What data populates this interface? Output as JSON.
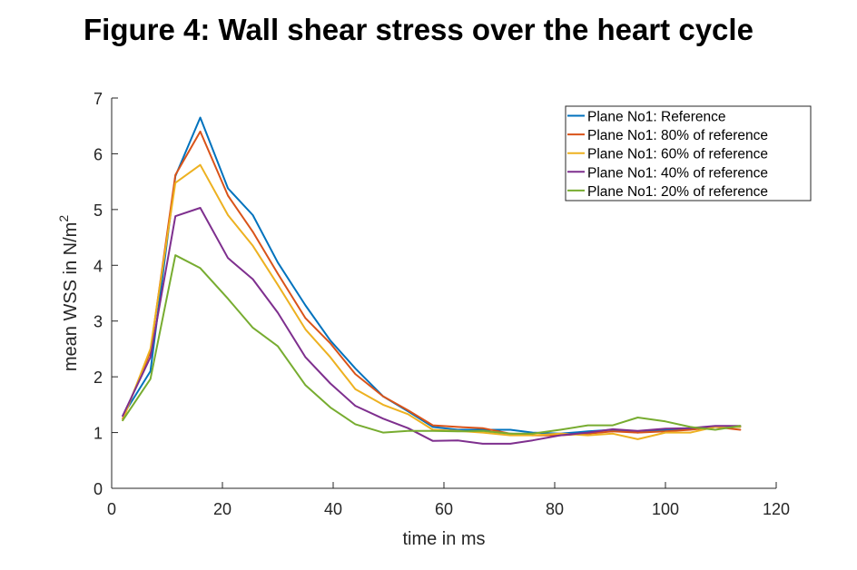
{
  "title": "Figure 4: Wall shear stress over the heart cycle",
  "chart_data": {
    "type": "line",
    "title": "Figure 4: Wall shear stress over the heart cycle",
    "xlabel": "time in ms",
    "ylabel": "mean WSS in N/m",
    "ylabel_superscript": "2",
    "xlim": [
      0,
      120
    ],
    "ylim": [
      0,
      7
    ],
    "xticks": [
      0,
      20,
      40,
      60,
      80,
      100,
      120
    ],
    "yticks": [
      0,
      1,
      2,
      3,
      4,
      5,
      6,
      7
    ],
    "grid": false,
    "legend_position": "top-right",
    "x": [
      2,
      7,
      11.5,
      16,
      21,
      25.5,
      30,
      35,
      39.5,
      44,
      49,
      53.5,
      58,
      62.5,
      67,
      72,
      76,
      81,
      86,
      90.5,
      95,
      100,
      104.5,
      109,
      113.5
    ],
    "series": [
      {
        "name": "Plane No1: Reference",
        "color": "#0072BD",
        "values": [
          1.3,
          2.1,
          5.6,
          6.65,
          5.38,
          4.9,
          4.05,
          3.28,
          2.65,
          2.15,
          1.65,
          1.38,
          1.1,
          1.05,
          1.05,
          1.05,
          1.0,
          0.98,
          1.02,
          1.05,
          1.0,
          1.05,
          1.07,
          1.1,
          1.1
        ]
      },
      {
        "name": "Plane No1: 80% of reference",
        "color": "#D95319",
        "values": [
          1.25,
          2.45,
          5.62,
          6.4,
          5.25,
          4.6,
          3.85,
          3.05,
          2.6,
          2.05,
          1.65,
          1.4,
          1.13,
          1.1,
          1.08,
          0.98,
          0.95,
          0.95,
          0.98,
          1.02,
          1.0,
          1.02,
          1.05,
          1.1,
          1.05
        ]
      },
      {
        "name": "Plane No1: 60% of reference",
        "color": "#EDB120",
        "values": [
          1.22,
          2.5,
          5.48,
          5.8,
          4.9,
          4.35,
          3.65,
          2.85,
          2.35,
          1.78,
          1.5,
          1.33,
          1.05,
          1.03,
          1.0,
          0.95,
          0.95,
          0.98,
          0.95,
          0.98,
          0.88,
          1.0,
          1.0,
          1.1,
          1.1
        ]
      },
      {
        "name": "Plane No1: 40% of reference",
        "color": "#7E2F8E",
        "values": [
          1.3,
          2.35,
          4.88,
          5.03,
          4.13,
          3.75,
          3.15,
          2.35,
          1.88,
          1.48,
          1.25,
          1.08,
          0.85,
          0.86,
          0.8,
          0.8,
          0.86,
          0.95,
          1.0,
          1.06,
          1.03,
          1.07,
          1.08,
          1.12,
          1.12
        ]
      },
      {
        "name": "Plane No1: 20% of reference",
        "color": "#77AC30",
        "values": [
          1.22,
          1.96,
          4.18,
          3.95,
          3.4,
          2.88,
          2.55,
          1.85,
          1.45,
          1.15,
          1.0,
          1.03,
          1.03,
          1.02,
          1.03,
          0.98,
          0.98,
          1.05,
          1.13,
          1.13,
          1.27,
          1.2,
          1.1,
          1.05,
          1.12
        ]
      }
    ]
  }
}
